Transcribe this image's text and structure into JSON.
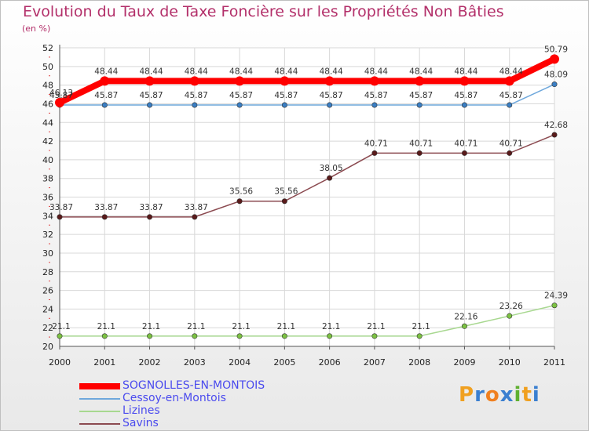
{
  "title": "Evolution du Taux de Taxe Foncière sur les Propriétés Non Bâties",
  "unit_label": "(en %)",
  "logo": {
    "text": "Proxiti",
    "letters": [
      {
        "ch": "P",
        "color": "#f0a020"
      },
      {
        "ch": "r",
        "color": "#3a7fd0"
      },
      {
        "ch": "o",
        "color": "#f08020"
      },
      {
        "ch": "x",
        "color": "#3a7fd0"
      },
      {
        "ch": "i",
        "color": "#60b030"
      },
      {
        "ch": "t",
        "color": "#f0a020"
      },
      {
        "ch": "i",
        "color": "#3a7fd0"
      }
    ]
  },
  "chart_data": {
    "type": "line",
    "title": "Evolution du Taux de Taxe Foncière sur les Propriétés Non Bâties",
    "ylabel": "(en %)",
    "xlabel": "",
    "x": [
      "2000",
      "2001",
      "2002",
      "2003",
      "2004",
      "2005",
      "2006",
      "2007",
      "2008",
      "2009",
      "2010",
      "2011"
    ],
    "ylim": [
      20,
      52
    ],
    "yticks": [
      20,
      22,
      24,
      26,
      28,
      30,
      32,
      34,
      36,
      38,
      40,
      42,
      44,
      46,
      48,
      50,
      52
    ],
    "grid": true,
    "series": [
      {
        "name": "SOGNOLLES-EN-MONTOIS",
        "color": "#ff0000",
        "emphasis": true,
        "values": [
          46.13,
          48.44,
          48.44,
          48.44,
          48.44,
          48.44,
          48.44,
          48.44,
          48.44,
          48.44,
          48.44,
          50.79
        ],
        "labels": [
          "46.13",
          "48.44",
          "48.44",
          "48.44",
          "48.44",
          "48.44",
          "48.44",
          "48.44",
          "48.44",
          "48.44",
          "48.44",
          "50.79"
        ]
      },
      {
        "name": "Cessoy-en-Montois",
        "color": "#6fa8dc",
        "marker": "#3b7fc4",
        "values": [
          45.87,
          45.87,
          45.87,
          45.87,
          45.87,
          45.87,
          45.87,
          45.87,
          45.87,
          45.87,
          45.87,
          48.09
        ],
        "labels": [
          "45.87",
          "45.87",
          "45.87",
          "45.87",
          "45.87",
          "45.87",
          "45.87",
          "45.87",
          "45.87",
          "45.87",
          "45.87",
          "48.09"
        ]
      },
      {
        "name": "Lizines",
        "color": "#a8d890",
        "marker": "#7cc242",
        "values": [
          21.1,
          21.1,
          21.1,
          21.1,
          21.1,
          21.1,
          21.1,
          21.1,
          21.1,
          22.16,
          23.26,
          24.39
        ],
        "labels": [
          "21.1",
          "21.1",
          "21.1",
          "21.1",
          "21.1",
          "21.1",
          "21.1",
          "21.1",
          "21.1",
          "22.16",
          "23.26",
          "24.39"
        ]
      },
      {
        "name": "Savins",
        "color": "#8b4a50",
        "marker": "#5a1a1a",
        "values": [
          33.87,
          33.87,
          33.87,
          33.87,
          35.56,
          35.56,
          38.05,
          40.71,
          40.71,
          40.71,
          40.71,
          42.68
        ],
        "labels": [
          "33.87",
          "33.87",
          "33.87",
          "33.87",
          "35.56",
          "35.56",
          "38.05",
          "40.71",
          "40.71",
          "40.71",
          "40.71",
          "42.68"
        ]
      }
    ]
  }
}
